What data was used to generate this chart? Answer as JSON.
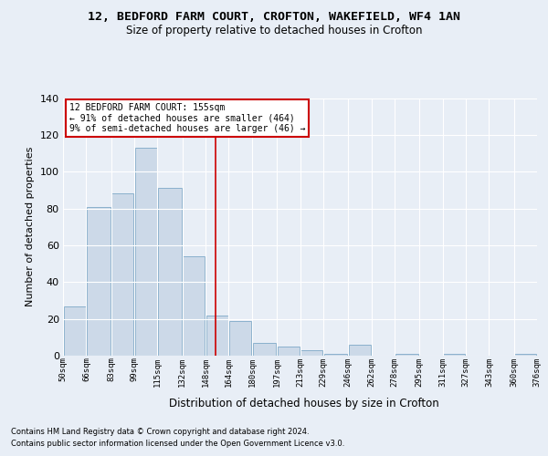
{
  "title_line1": "12, BEDFORD FARM COURT, CROFTON, WAKEFIELD, WF4 1AN",
  "title_line2": "Size of property relative to detached houses in Crofton",
  "xlabel": "Distribution of detached houses by size in Crofton",
  "ylabel": "Number of detached properties",
  "footer_line1": "Contains HM Land Registry data © Crown copyright and database right 2024.",
  "footer_line2": "Contains public sector information licensed under the Open Government Licence v3.0.",
  "annotation_line1": "12 BEDFORD FARM COURT: 155sqm",
  "annotation_line2": "← 91% of detached houses are smaller (464)",
  "annotation_line3": "9% of semi-detached houses are larger (46) →",
  "property_size": 155,
  "bins": [
    50,
    66,
    83,
    99,
    115,
    132,
    148,
    164,
    180,
    197,
    213,
    229,
    246,
    262,
    278,
    295,
    311,
    327,
    343,
    360,
    376
  ],
  "bin_labels": [
    "50sqm",
    "66sqm",
    "83sqm",
    "99sqm",
    "115sqm",
    "132sqm",
    "148sqm",
    "164sqm",
    "180sqm",
    "197sqm",
    "213sqm",
    "229sqm",
    "246sqm",
    "262sqm",
    "278sqm",
    "295sqm",
    "311sqm",
    "327sqm",
    "343sqm",
    "360sqm",
    "376sqm"
  ],
  "counts": [
    27,
    81,
    88,
    113,
    91,
    54,
    22,
    19,
    7,
    5,
    3,
    1,
    6,
    0,
    1,
    0,
    1,
    0,
    0,
    1
  ],
  "bar_facecolor": "#ccd9e8",
  "bar_edgecolor": "#8ab0cc",
  "vline_color": "#cc0000",
  "vline_x": 155,
  "annotation_box_edgecolor": "#cc0000",
  "background_color": "#e8eef6",
  "plot_bg_color": "#e8eef6",
  "grid_color": "#ffffff",
  "ylim": [
    0,
    140
  ],
  "yticks": [
    0,
    20,
    40,
    60,
    80,
    100,
    120,
    140
  ]
}
